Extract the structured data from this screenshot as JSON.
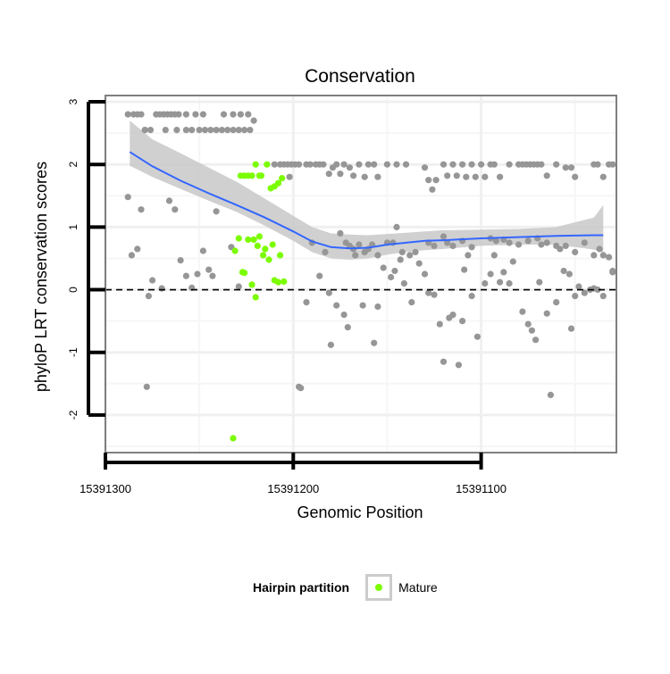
{
  "chart_data": {
    "type": "scatter",
    "title": "Conservation",
    "xlabel": "Genomic Position",
    "ylabel": "phyloP LRT conservation scores",
    "xlim": [
      15391300,
      15391028
    ],
    "x_reversed": true,
    "ylim": [
      -2.6,
      3.1
    ],
    "x_ticks": [
      15391300,
      15391200,
      15391100
    ],
    "y_ticks": [
      -2,
      -1,
      0,
      1,
      2,
      3
    ],
    "grid": true,
    "reference_line": {
      "y": 0,
      "style": "dashed"
    },
    "colors": {
      "other": "#969696",
      "mature": "#7cfc00",
      "smooth": "#3366ff",
      "ribbon": "#c8c8c8",
      "panel_border": "#7f7f7f",
      "grid": "#f0f0f0"
    },
    "legend": {
      "title": "Hairpin partition",
      "entries": [
        "Mature"
      ],
      "placement": "bottom"
    },
    "smooth": {
      "x": [
        15391287,
        15391275,
        15391260,
        15391245,
        15391230,
        15391215,
        15391200,
        15391190,
        15391180,
        15391170,
        15391160,
        15391150,
        15391140,
        15391130,
        15391120,
        15391100,
        15391080,
        15391060,
        15391040,
        15391035
      ],
      "y": [
        2.2,
        1.97,
        1.74,
        1.54,
        1.35,
        1.15,
        0.93,
        0.77,
        0.68,
        0.66,
        0.67,
        0.72,
        0.75,
        0.78,
        0.79,
        0.82,
        0.84,
        0.86,
        0.87,
        0.87
      ],
      "lower": [
        1.98,
        1.8,
        1.61,
        1.42,
        1.24,
        1.02,
        0.78,
        0.6,
        0.5,
        0.48,
        0.5,
        0.56,
        0.6,
        0.63,
        0.65,
        0.7,
        0.72,
        0.72,
        0.64,
        0.6
      ],
      "upper": [
        2.7,
        2.4,
        2.18,
        1.95,
        1.72,
        1.45,
        1.18,
        1.0,
        0.9,
        0.88,
        0.87,
        0.89,
        0.91,
        0.93,
        0.95,
        0.96,
        0.97,
        1.0,
        1.15,
        1.35
      ]
    },
    "series": [
      {
        "name": "Other",
        "points": [
          [
            15391288,
            2.8
          ],
          [
            15391285,
            2.8
          ],
          [
            15391283,
            2.8
          ],
          [
            15391281,
            2.8
          ],
          [
            15391279,
            2.55
          ],
          [
            15391276,
            2.55
          ],
          [
            15391273,
            2.8
          ],
          [
            15391271,
            2.8
          ],
          [
            15391269,
            2.8
          ],
          [
            15391267,
            2.8
          ],
          [
            15391265,
            2.8
          ],
          [
            15391263,
            2.8
          ],
          [
            15391261,
            2.8
          ],
          [
            15391257,
            2.8
          ],
          [
            15391252,
            2.8
          ],
          [
            15391248,
            2.8
          ],
          [
            15391237,
            2.8
          ],
          [
            15391232,
            2.8
          ],
          [
            15391228,
            2.8
          ],
          [
            15391224,
            2.8
          ],
          [
            15391279,
            2.55
          ],
          [
            15391268,
            2.55
          ],
          [
            15391262,
            2.55
          ],
          [
            15391257,
            2.55
          ],
          [
            15391254,
            2.55
          ],
          [
            15391250,
            2.55
          ],
          [
            15391247,
            2.55
          ],
          [
            15391244,
            2.55
          ],
          [
            15391241,
            2.55
          ],
          [
            15391238,
            2.55
          ],
          [
            15391235,
            2.55
          ],
          [
            15391232,
            2.55
          ],
          [
            15391229,
            2.55
          ],
          [
            15391226,
            2.55
          ],
          [
            15391223,
            2.55
          ],
          [
            15391221,
            2.7
          ],
          [
            15391288,
            1.48
          ],
          [
            15391286,
            0.55
          ],
          [
            15391283,
            0.65
          ],
          [
            15391281,
            1.28
          ],
          [
            15391277,
            -0.1
          ],
          [
            15391275,
            0.15
          ],
          [
            15391270,
            0.02
          ],
          [
            15391266,
            1.42
          ],
          [
            15391263,
            1.28
          ],
          [
            15391260,
            0.47
          ],
          [
            15391257,
            0.22
          ],
          [
            15391254,
            0.03
          ],
          [
            15391251,
            0.25
          ],
          [
            15391248,
            0.62
          ],
          [
            15391245,
            0.32
          ],
          [
            15391243,
            0.22
          ],
          [
            15391241,
            1.25
          ],
          [
            15391233,
            0.68
          ],
          [
            15391229,
            0.05
          ],
          [
            15391278,
            -1.55
          ],
          [
            15391193,
            -0.2
          ],
          [
            15391190,
            0.75
          ],
          [
            15391186,
            0.22
          ],
          [
            15391180,
            -0.88
          ],
          [
            15391181,
            -0.05
          ],
          [
            15391177,
            -0.25
          ],
          [
            15391173,
            -0.4
          ],
          [
            15391171,
            -0.6
          ],
          [
            15391167,
            0.55
          ],
          [
            15391163,
            -0.25
          ],
          [
            15391157,
            -0.85
          ],
          [
            15391155,
            -0.27
          ],
          [
            15391152,
            0.35
          ],
          [
            15391148,
            0.2
          ],
          [
            15391146,
            0.3
          ],
          [
            15391143,
            0.48
          ],
          [
            15391141,
            0.1
          ],
          [
            15391137,
            -0.2
          ],
          [
            15391133,
            0.42
          ],
          [
            15391130,
            0.25
          ],
          [
            15391128,
            -0.05
          ],
          [
            15391125,
            -0.08
          ],
          [
            15391122,
            -0.55
          ],
          [
            15391120,
            -1.15
          ],
          [
            15391117,
            -0.45
          ],
          [
            15391115,
            -0.4
          ],
          [
            15391112,
            -1.2
          ],
          [
            15391110,
            -0.5
          ],
          [
            15391109,
            0.32
          ],
          [
            15391107,
            0.55
          ],
          [
            15391105,
            -0.1
          ],
          [
            15391102,
            -0.75
          ],
          [
            15391098,
            0.1
          ],
          [
            15391095,
            0.25
          ],
          [
            15391093,
            0.55
          ],
          [
            15391090,
            0.12
          ],
          [
            15391088,
            0.28
          ],
          [
            15391085,
            0.1
          ],
          [
            15391083,
            0.45
          ],
          [
            15391078,
            -0.35
          ],
          [
            15391075,
            -0.55
          ],
          [
            15391073,
            -0.65
          ],
          [
            15391071,
            -0.8
          ],
          [
            15391069,
            0.12
          ],
          [
            15391065,
            -0.38
          ],
          [
            15391063,
            -1.68
          ],
          [
            15391060,
            -0.2
          ],
          [
            15391056,
            0.3
          ],
          [
            15391053,
            0.25
          ],
          [
            15391050,
            -0.1
          ],
          [
            15391048,
            0.05
          ],
          [
            15391045,
            -0.05
          ],
          [
            15391042,
            0.0
          ],
          [
            15391040,
            0.02
          ],
          [
            15391038,
            0.0
          ],
          [
            15391035,
            -0.1
          ],
          [
            15391032,
            0.52
          ],
          [
            15391030,
            0.28
          ],
          [
            15391052,
            -0.62
          ],
          [
            15391197,
            -1.55
          ],
          [
            15391196,
            -1.57
          ],
          [
            15391175,
            0.9
          ],
          [
            15391172,
            0.75
          ],
          [
            15391170,
            0.7
          ],
          [
            15391168,
            0.65
          ],
          [
            15391165,
            0.72
          ],
          [
            15391162,
            0.6
          ],
          [
            15391160,
            0.65
          ],
          [
            15391158,
            0.72
          ],
          [
            15391155,
            0.55
          ],
          [
            15391150,
            0.75
          ],
          [
            15391147,
            0.75
          ],
          [
            15391145,
            1.0
          ],
          [
            15391142,
            0.6
          ],
          [
            15391138,
            0.55
          ],
          [
            15391135,
            0.6
          ],
          [
            15391128,
            0.75
          ],
          [
            15391125,
            0.7
          ],
          [
            15391120,
            0.85
          ],
          [
            15391118,
            0.75
          ],
          [
            15391115,
            0.7
          ],
          [
            15391110,
            0.78
          ],
          [
            15391105,
            0.68
          ],
          [
            15391095,
            0.82
          ],
          [
            15391092,
            0.78
          ],
          [
            15391088,
            0.8
          ],
          [
            15391085,
            0.75
          ],
          [
            15391080,
            0.72
          ],
          [
            15391075,
            0.78
          ],
          [
            15391070,
            0.82
          ],
          [
            15391068,
            0.72
          ],
          [
            15391065,
            0.75
          ],
          [
            15391060,
            0.7
          ],
          [
            15391058,
            0.65
          ],
          [
            15391055,
            0.7
          ],
          [
            15391050,
            0.6
          ],
          [
            15391045,
            0.75
          ],
          [
            15391040,
            0.55
          ],
          [
            15391037,
            0.65
          ],
          [
            15391035,
            0.55
          ],
          [
            15391030,
            0.3
          ],
          [
            15391183,
            0.6
          ],
          [
            15391210,
            2.0
          ],
          [
            15391207,
            2.0
          ],
          [
            15391205,
            2.0
          ],
          [
            15391203,
            2.0
          ],
          [
            15391201,
            2.0
          ],
          [
            15391199,
            2.0
          ],
          [
            15391197,
            2.0
          ],
          [
            15391193,
            2.0
          ],
          [
            15391191,
            2.0
          ],
          [
            15391188,
            2.0
          ],
          [
            15391186,
            2.0
          ],
          [
            15391184,
            2.0
          ],
          [
            15391181,
            1.85
          ],
          [
            15391179,
            1.95
          ],
          [
            15391177,
            2.0
          ],
          [
            15391175,
            1.85
          ],
          [
            15391173,
            2.0
          ],
          [
            15391170,
            1.95
          ],
          [
            15391168,
            1.82
          ],
          [
            15391165,
            2.0
          ],
          [
            15391162,
            1.8
          ],
          [
            15391160,
            2.0
          ],
          [
            15391157,
            2.0
          ],
          [
            15391155,
            1.8
          ],
          [
            15391150,
            2.0
          ],
          [
            15391145,
            2.0
          ],
          [
            15391140,
            2.0
          ],
          [
            15391130,
            1.95
          ],
          [
            15391128,
            1.75
          ],
          [
            15391126,
            1.6
          ],
          [
            15391124,
            1.75
          ],
          [
            15391120,
            2.0
          ],
          [
            15391118,
            1.82
          ],
          [
            15391115,
            2.0
          ],
          [
            15391113,
            1.82
          ],
          [
            15391110,
            2.0
          ],
          [
            15391108,
            1.8
          ],
          [
            15391105,
            2.0
          ],
          [
            15391103,
            1.8
          ],
          [
            15391100,
            2.0
          ],
          [
            15391098,
            1.8
          ],
          [
            15391095,
            2.0
          ],
          [
            15391093,
            2.0
          ],
          [
            15391090,
            1.8
          ],
          [
            15391085,
            2.0
          ],
          [
            15391080,
            2.0
          ],
          [
            15391078,
            2.0
          ],
          [
            15391076,
            2.0
          ],
          [
            15391074,
            2.0
          ],
          [
            15391072,
            2.0
          ],
          [
            15391070,
            2.0
          ],
          [
            15391068,
            2.0
          ],
          [
            15391065,
            1.82
          ],
          [
            15391060,
            2.0
          ],
          [
            15391055,
            1.95
          ],
          [
            15391052,
            1.95
          ],
          [
            15391050,
            1.8
          ],
          [
            15391040,
            2.0
          ],
          [
            15391038,
            2.0
          ],
          [
            15391035,
            1.8
          ],
          [
            15391032,
            2.0
          ],
          [
            15391030,
            2.0
          ],
          [
            15391202,
            1.8
          ]
        ]
      },
      {
        "name": "Mature",
        "points": [
          [
            15391228,
            1.82
          ],
          [
            15391226,
            1.82
          ],
          [
            15391224,
            1.82
          ],
          [
            15391222,
            1.82
          ],
          [
            15391220,
            2.0
          ],
          [
            15391218,
            1.82
          ],
          [
            15391217,
            1.82
          ],
          [
            15391214,
            2.0
          ],
          [
            15391212,
            1.62
          ],
          [
            15391210,
            1.65
          ],
          [
            15391208,
            1.7
          ],
          [
            15391206,
            1.78
          ],
          [
            15391231,
            0.62
          ],
          [
            15391229,
            0.82
          ],
          [
            15391227,
            0.28
          ],
          [
            15391226,
            0.27
          ],
          [
            15391224,
            0.8
          ],
          [
            15391221,
            0.8
          ],
          [
            15391219,
            0.7
          ],
          [
            15391218,
            0.85
          ],
          [
            15391216,
            0.55
          ],
          [
            15391215,
            0.65
          ],
          [
            15391213,
            0.48
          ],
          [
            15391211,
            0.72
          ],
          [
            15391210,
            0.15
          ],
          [
            15391208,
            0.12
          ],
          [
            15391207,
            0.55
          ],
          [
            15391205,
            0.13
          ],
          [
            15391222,
            0.08
          ],
          [
            15391220,
            -0.12
          ],
          [
            15391232,
            -2.37
          ]
        ]
      }
    ]
  }
}
